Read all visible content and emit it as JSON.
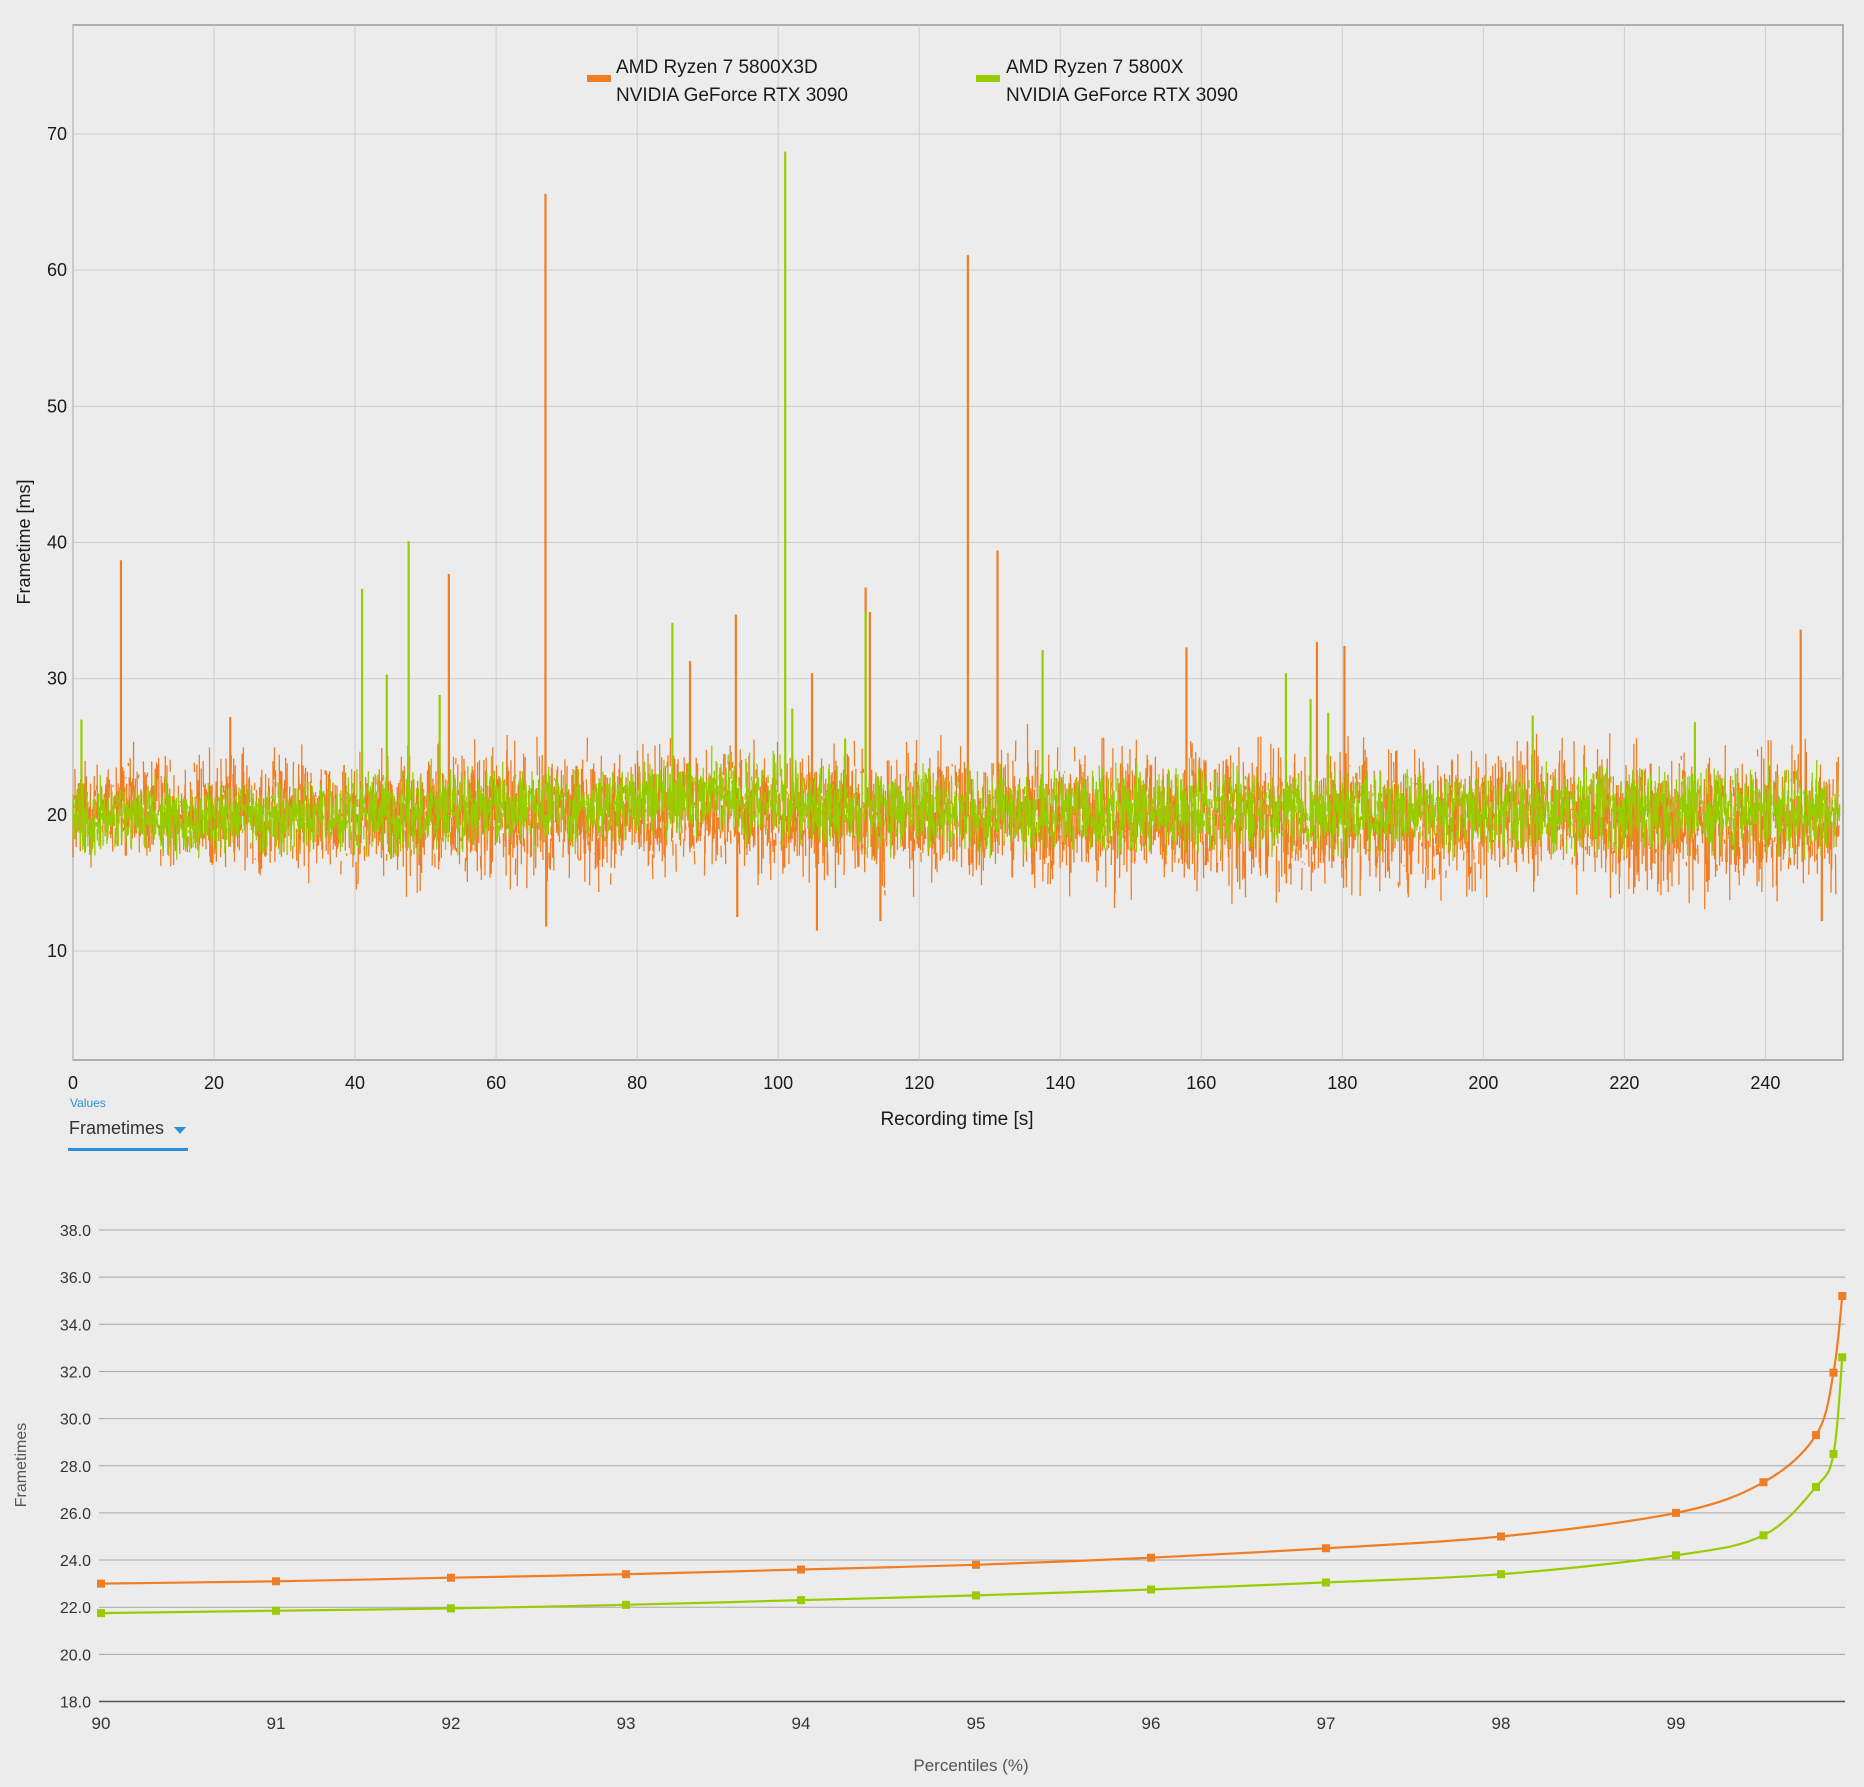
{
  "colors": {
    "orange": "#f07d24",
    "green": "#99cc00",
    "grid": "#cfcfcf",
    "axis": "#9a9a9a",
    "background": "#ececec",
    "accent": "#2b8fd6"
  },
  "values_control": {
    "label": "Values",
    "selected": "Frametimes",
    "icon": "chevron-down-icon"
  },
  "chart_data": [
    {
      "type": "line",
      "title": "",
      "xlabel": "Recording time [s]",
      "ylabel": "Frametime [ms]",
      "xlim": [
        0,
        251
      ],
      "ylim": [
        2,
        78
      ],
      "xticks": [
        0,
        20,
        40,
        60,
        80,
        100,
        120,
        140,
        160,
        180,
        200,
        220,
        240
      ],
      "yticks": [
        10,
        20,
        30,
        40,
        50,
        60,
        70
      ],
      "grid": true,
      "legend_position": "top-center",
      "series": [
        {
          "name": "AMD Ryzen 7 5800X3D\nNVIDIA GeForce RTX 3090",
          "legend_lines": [
            "AMD Ryzen 7 5800X3D",
            "NVIDIA GeForce RTX 3090"
          ],
          "color": "#f07d24",
          "band": [
            [
              0,
              15.5,
              25
            ],
            [
              10,
              15.5,
              25.5
            ],
            [
              20,
              15,
              25.5
            ],
            [
              30,
              15,
              25.5
            ],
            [
              40,
              14.5,
              25.5
            ],
            [
              50,
              14,
              26
            ],
            [
              60,
              14,
              26
            ],
            [
              70,
              14,
              26
            ],
            [
              80,
              14.5,
              26
            ],
            [
              90,
              15,
              26
            ],
            [
              100,
              14.5,
              26
            ],
            [
              110,
              14,
              26
            ],
            [
              120,
              13.5,
              26
            ],
            [
              130,
              14,
              26
            ],
            [
              140,
              14,
              26
            ],
            [
              150,
              13.5,
              26
            ],
            [
              160,
              13.5,
              26
            ],
            [
              170,
              13.5,
              26
            ],
            [
              180,
              13.5,
              26
            ],
            [
              190,
              13.5,
              26
            ],
            [
              200,
              13.5,
              26
            ],
            [
              210,
              13.5,
              26
            ],
            [
              220,
              13.5,
              26
            ],
            [
              230,
              13.5,
              26
            ],
            [
              240,
              13,
              26
            ],
            [
              250,
              13.5,
              25
            ]
          ],
          "spikes": [
            [
              6.8,
              38.7
            ],
            [
              22.3,
              27.2
            ],
            [
              53.3,
              37.7
            ],
            [
              67,
              65.6
            ],
            [
              67.1,
              11.8
            ],
            [
              87.5,
              31.3
            ],
            [
              94,
              34.7
            ],
            [
              94.2,
              12.5
            ],
            [
              104.8,
              30.4
            ],
            [
              105.5,
              11.5
            ],
            [
              112.4,
              36.7
            ],
            [
              114.5,
              12.2
            ],
            [
              126.9,
              61.1
            ],
            [
              131.1,
              39.4
            ],
            [
              157.9,
              32.3
            ],
            [
              176.4,
              32.7
            ],
            [
              180.3,
              32.4
            ],
            [
              245,
              33.6
            ],
            [
              248,
              12.2
            ],
            [
              113,
              34.9
            ]
          ]
        },
        {
          "name": "AMD Ryzen 7 5800X\nNVIDIA GeForce RTX 3090",
          "legend_lines": [
            "AMD Ryzen 7 5800X",
            "NVIDIA GeForce RTX 3090"
          ],
          "color": "#99cc00",
          "band": [
            [
              0,
              16.5,
              23
            ],
            [
              10,
              16.5,
              23
            ],
            [
              20,
              16.5,
              23
            ],
            [
              40,
              16.5,
              23.5
            ],
            [
              60,
              17,
              24
            ],
            [
              80,
              17.5,
              24
            ],
            [
              90,
              18,
              25
            ],
            [
              100,
              17.5,
              25
            ],
            [
              110,
              17,
              24
            ],
            [
              120,
              16.5,
              24
            ],
            [
              140,
              16.5,
              24
            ],
            [
              160,
              16.5,
              24
            ],
            [
              180,
              16.5,
              24
            ],
            [
              200,
              16.5,
              24
            ],
            [
              220,
              16.5,
              24
            ],
            [
              240,
              16.5,
              24
            ],
            [
              250,
              16.5,
              24
            ]
          ],
          "spikes": [
            [
              1.2,
              27
            ],
            [
              41,
              36.6
            ],
            [
              47.6,
              40.1
            ],
            [
              44.5,
              30.3
            ],
            [
              52,
              28.8
            ],
            [
              85,
              34.1
            ],
            [
              101,
              68.7
            ],
            [
              102,
              27.8
            ],
            [
              109.5,
              25.6
            ],
            [
              112.4,
              35
            ],
            [
              137.5,
              32.1
            ],
            [
              172,
              30.4
            ],
            [
              175.5,
              28.5
            ],
            [
              178,
              27.5
            ],
            [
              207,
              27.3
            ],
            [
              230,
              26.8
            ]
          ]
        }
      ]
    },
    {
      "type": "line",
      "title": "",
      "xlabel": "Percentiles (%)",
      "ylabel": "Frametimes",
      "xlim": [
        90,
        100
      ],
      "ylim": [
        18,
        38
      ],
      "xticks": [
        90,
        91,
        92,
        93,
        94,
        95,
        96,
        97,
        98,
        99
      ],
      "yticks": [
        "18.0",
        "20.0",
        "22.0",
        "24.0",
        "26.0",
        "28.0",
        "30.0",
        "32.0",
        "34.0",
        "36.0",
        "38.0"
      ],
      "grid": true,
      "series": [
        {
          "name": "AMD Ryzen 7 5800X3D",
          "color": "#f07d24",
          "x": [
            90,
            91,
            92,
            93,
            94,
            95,
            96,
            97,
            98,
            99,
            99.5,
            99.8,
            99.9,
            99.95
          ],
          "y": [
            23.0,
            23.1,
            23.25,
            23.4,
            23.6,
            23.8,
            24.1,
            24.5,
            25.0,
            26.0,
            27.3,
            29.3,
            31.95,
            35.2
          ]
        },
        {
          "name": "AMD Ryzen 7 5800X",
          "color": "#99cc00",
          "x": [
            90,
            91,
            92,
            93,
            94,
            95,
            96,
            97,
            98,
            99,
            99.5,
            99.8,
            99.9,
            99.95
          ],
          "y": [
            21.75,
            21.85,
            21.95,
            22.1,
            22.3,
            22.5,
            22.75,
            23.05,
            23.4,
            24.2,
            25.05,
            27.1,
            28.5,
            32.6
          ]
        }
      ]
    }
  ]
}
